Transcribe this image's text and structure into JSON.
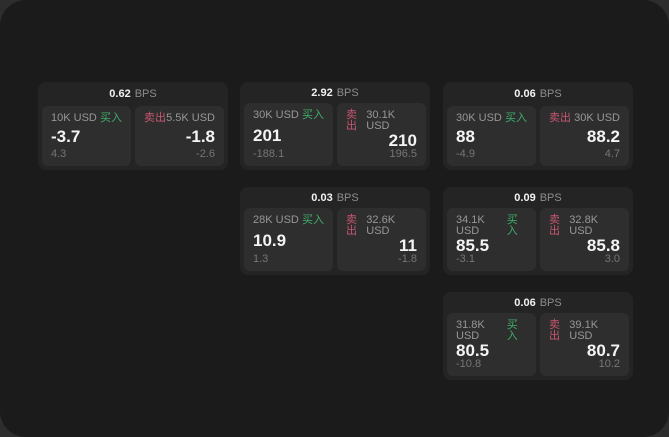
{
  "labels": {
    "bps_unit": "BPS",
    "buy": "买入",
    "sell": "卖出"
  },
  "colors": {
    "window_background": "#1b1b1b",
    "outside_background": "#2d2d2d",
    "card_background": "#242424",
    "panel_background": "#2e2e2e",
    "buy_green": "#3fae6a",
    "sell_red": "#c65670",
    "primary_text": "#f4f4f4",
    "muted_text": "#8d8d8d"
  },
  "cards": [
    {
      "bps": "0.62",
      "buy": {
        "amount": "10K USD",
        "value": "-3.7",
        "delta": "4.3"
      },
      "sell": {
        "amount": "5.5K USD",
        "value": "-1.8",
        "delta": "-2.6"
      }
    },
    {
      "bps": "2.92",
      "buy": {
        "amount": "30K USD",
        "value": "201",
        "delta": "-188.1"
      },
      "sell": {
        "amount": "30.1K USD",
        "value": "210",
        "delta": "196.5"
      }
    },
    {
      "bps": "0.06",
      "buy": {
        "amount": "30K USD",
        "value": "88",
        "delta": "-4.9"
      },
      "sell": {
        "amount": "30K USD",
        "value": "88.2",
        "delta": "4.7"
      }
    },
    {
      "bps": "0.03",
      "buy": {
        "amount": "28K USD",
        "value": "10.9",
        "delta": "1.3"
      },
      "sell": {
        "amount": "32.6K USD",
        "value": "11",
        "delta": "-1.8"
      }
    },
    {
      "bps": "0.09",
      "buy": {
        "amount": "34.1K USD",
        "value": "85.5",
        "delta": "-3.1"
      },
      "sell": {
        "amount": "32.8K USD",
        "value": "85.8",
        "delta": "3.0"
      }
    },
    {
      "bps": "0.06",
      "buy": {
        "amount": "31.8K USD",
        "value": "80.5",
        "delta": "-10.8"
      },
      "sell": {
        "amount": "39.1K USD",
        "value": "80.7",
        "delta": "10.2"
      }
    }
  ]
}
